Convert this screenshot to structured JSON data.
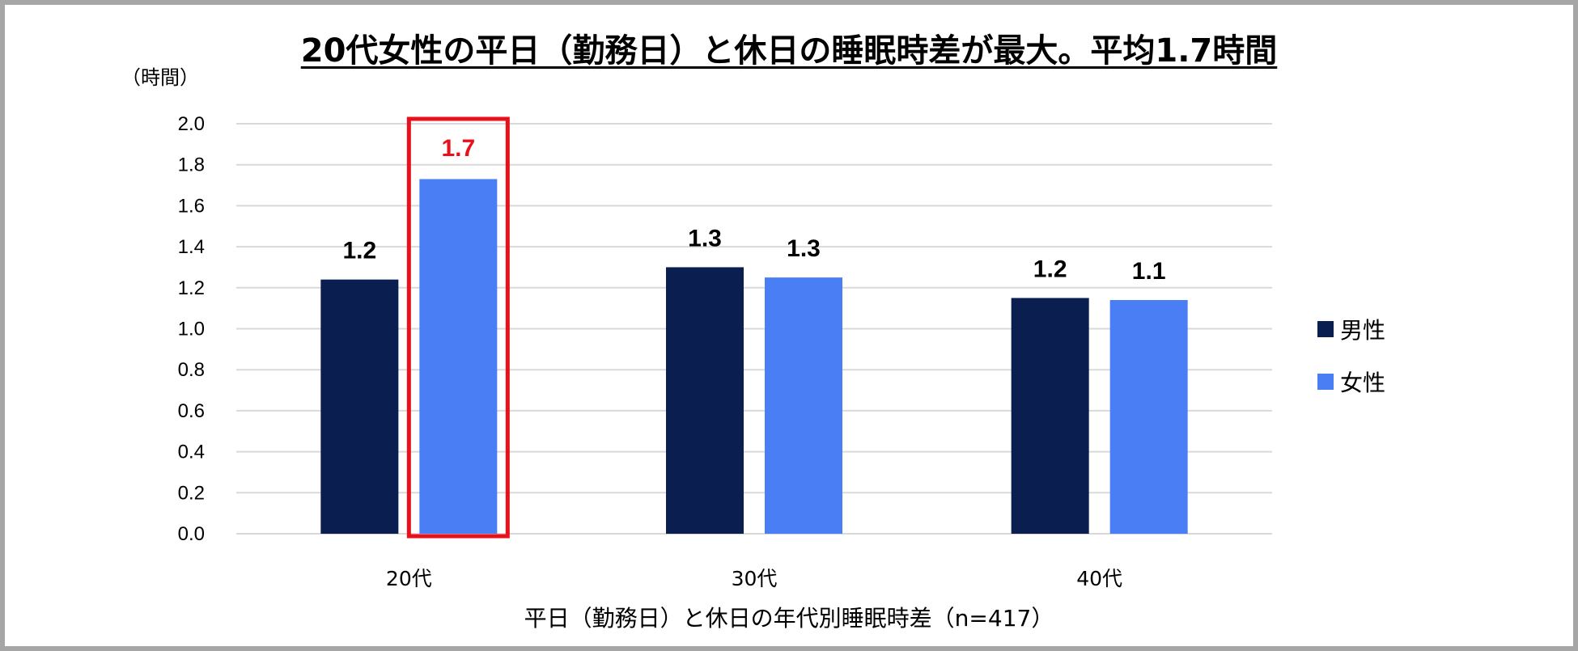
{
  "chart_data": {
    "type": "bar",
    "title": "20代女性の平日（勤務日）と休日の睡眠時差が最大。平均1.7時間",
    "ylabel": "（時間）",
    "xlabel": "平日（勤務日）と休日の年代別睡眠時差（n=417）",
    "categories": [
      "20代",
      "30代",
      "40代"
    ],
    "series": [
      {
        "name": "男性",
        "values": [
          1.24,
          1.3,
          1.15
        ],
        "labels": [
          "1.2",
          "1.3",
          "1.2"
        ],
        "color": "#0a1e50"
      },
      {
        "name": "女性",
        "values": [
          1.73,
          1.25,
          1.14
        ],
        "labels": [
          "1.7",
          "1.3",
          "1.1"
        ],
        "color": "#4a7ef5"
      }
    ],
    "ylim": [
      0,
      2.0
    ],
    "yticks": [
      "0.0",
      "0.2",
      "0.4",
      "0.6",
      "0.8",
      "1.0",
      "1.2",
      "1.4",
      "1.6",
      "1.8",
      "2.0"
    ],
    "grid": true,
    "legend_position": "right",
    "highlight": {
      "category": "20代",
      "series": "女性",
      "color": "#e8101a"
    }
  }
}
